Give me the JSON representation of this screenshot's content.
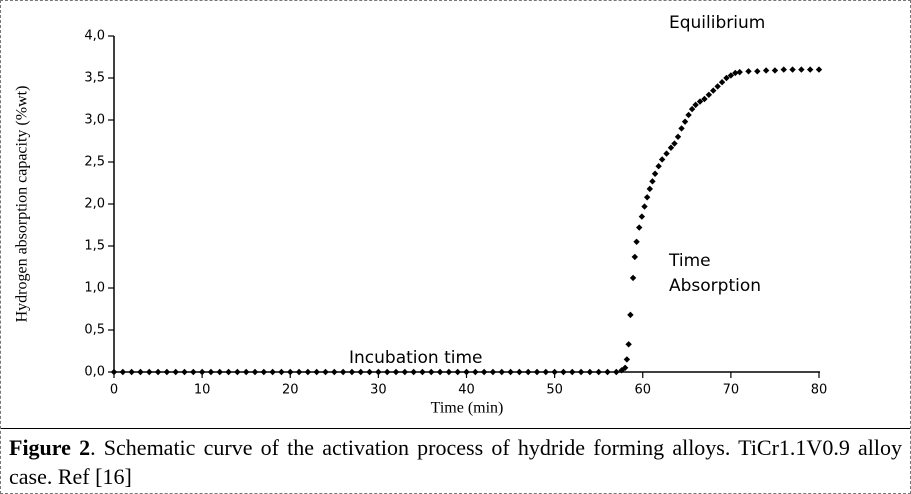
{
  "chart_data": {
    "type": "scatter",
    "xlabel": "Time (min)",
    "ylabel": "Hydrogen absorption capacity (%wt)",
    "annotations": [
      "Equilibrium",
      "Time",
      "Absorption",
      "Incubation time"
    ],
    "color": "#000000",
    "xlim": [
      0,
      80
    ],
    "xticks": [
      0,
      10,
      20,
      30,
      40,
      50,
      60,
      70,
      80
    ],
    "ylim": [
      0,
      4
    ],
    "yticks": [
      {
        "value": 0,
        "label": "0,0"
      },
      {
        "value": 0.5,
        "label": "0,5"
      },
      {
        "value": 1,
        "label": "1,0"
      },
      {
        "value": 1.5,
        "label": "1,5"
      },
      {
        "value": 2,
        "label": "2,0"
      },
      {
        "value": 2.5,
        "label": "2,5"
      },
      {
        "value": 3,
        "label": "3,0"
      },
      {
        "value": 3.5,
        "label": "3,5"
      },
      {
        "value": 4,
        "label": "4,0"
      }
    ],
    "x": [
      0,
      1,
      2,
      3,
      4,
      5,
      6,
      7,
      8,
      9,
      10,
      11,
      12,
      13,
      14,
      15,
      16,
      17,
      18,
      19,
      20,
      21,
      22,
      23,
      24,
      25,
      26,
      27,
      28,
      29,
      30,
      31,
      32,
      33,
      34,
      35,
      36,
      37,
      38,
      39,
      40,
      41,
      42,
      43,
      44,
      45,
      46,
      47,
      48,
      49,
      50,
      51,
      52,
      53,
      54,
      55,
      56,
      57,
      57.6,
      58,
      58.2,
      58.4,
      58.6,
      58.9,
      59.1,
      59.3,
      59.6,
      59.9,
      60.2,
      60.5,
      60.8,
      61.1,
      61.4,
      61.8,
      62.2,
      62.7,
      63.2,
      63.6,
      64,
      64.4,
      64.8,
      65.2,
      65.6,
      66,
      66.5,
      67,
      67.5,
      68,
      68.5,
      69,
      69.5,
      70,
      70.5,
      71,
      72,
      73,
      74,
      75,
      76,
      77,
      78,
      79,
      80
    ],
    "values": [
      0,
      0,
      0,
      0,
      0,
      0,
      0,
      0,
      0,
      0,
      0,
      0,
      0,
      0,
      0,
      0,
      0,
      0,
      0,
      0,
      0,
      0,
      0,
      0,
      0,
      0,
      0,
      0,
      0,
      0,
      0,
      0,
      0,
      0,
      0,
      0,
      0,
      0,
      0,
      0,
      0,
      0,
      0,
      0,
      0,
      0,
      0,
      0,
      0,
      0,
      0,
      0,
      0,
      0,
      0,
      0,
      0,
      0,
      0.02,
      0.05,
      0.15,
      0.33,
      0.68,
      1.12,
      1.37,
      1.55,
      1.72,
      1.85,
      1.97,
      2.08,
      2.18,
      2.27,
      2.36,
      2.45,
      2.53,
      2.6,
      2.67,
      2.72,
      2.8,
      2.9,
      2.98,
      3.06,
      3.13,
      3.18,
      3.22,
      3.25,
      3.3,
      3.35,
      3.4,
      3.45,
      3.5,
      3.53,
      3.56,
      3.57,
      3.58,
      3.58,
      3.59,
      3.59,
      3.6,
      3.6,
      3.6,
      3.6,
      3.6
    ]
  },
  "caption": {
    "label": "Figure 2",
    "text": ". Schematic curve of the activation process of hydride forming alloys. TiCr1.1V0.9 alloy case. Ref [16]"
  }
}
